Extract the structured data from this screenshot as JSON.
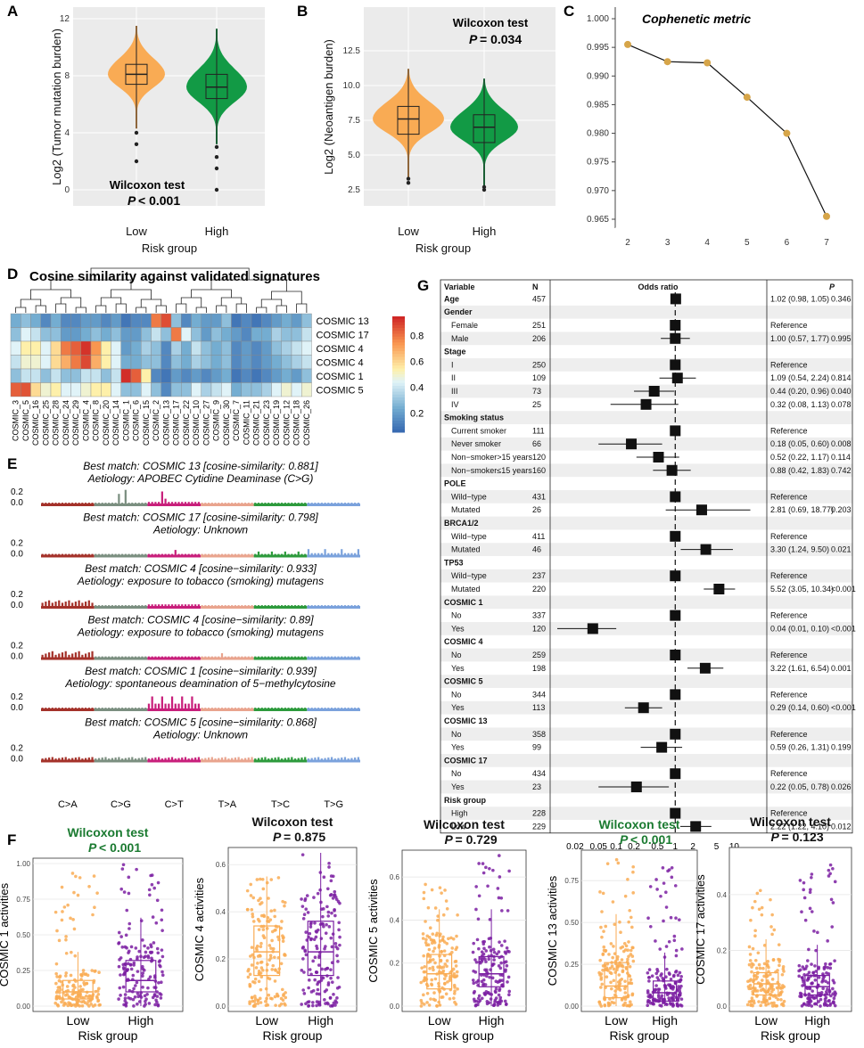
{
  "panels": {
    "A": "A",
    "B": "B",
    "C": "C",
    "D": "D",
    "E": "E",
    "F": "F",
    "G": "G"
  },
  "colors": {
    "low": "#f9ab54",
    "high": "#129a45",
    "purple": "#7b1fa2",
    "dot": "#d6a549",
    "grey_panel": "#ebebeb",
    "green_text": "#1a7a30"
  },
  "panelA": {
    "ylabel": "Log2 (Tumor mutation burden)",
    "xlabel": "Risk group",
    "categories": [
      "Low",
      "High"
    ],
    "yticks": [
      "0",
      "4",
      "8",
      "12"
    ],
    "stat_test": "Wilcoxon test",
    "stat_p_label": "P",
    "stat_p_value": "< 0.001"
  },
  "panelB": {
    "ylabel": "Log2 (Neoantigen burden)",
    "xlabel": "Risk group",
    "categories": [
      "Low",
      "High"
    ],
    "yticks": [
      "2.5",
      "5.0",
      "7.5",
      "10.0",
      "12.5"
    ],
    "stat_test": "Wilcoxon test",
    "stat_p_label": "P",
    "stat_p_value": "= 0.034"
  },
  "chart_data": [
    {
      "type": "line",
      "id": "C",
      "title": "Cophenetic metric",
      "x": [
        2,
        3,
        4,
        5,
        6,
        7
      ],
      "y": [
        0.9955,
        0.9925,
        0.9923,
        0.9863,
        0.98,
        0.9655
      ],
      "xlim": [
        2,
        7
      ],
      "ylim": [
        0.965,
        1.0
      ],
      "xticks": [
        "2",
        "3",
        "4",
        "5",
        "6",
        "7"
      ],
      "yticks": [
        "0.965",
        "0.970",
        "0.975",
        "0.980",
        "0.985",
        "0.990",
        "0.995",
        "1.000"
      ]
    },
    {
      "type": "heatmap",
      "id": "D",
      "title": "Cosine similarity against validated signatures",
      "rows": [
        "COSMIC 13",
        "COSMIC 17",
        "COSMIC 4",
        "COSMIC 4",
        "COSMIC 1",
        "COSMIC 5"
      ],
      "columns": [
        "COSMIC_3",
        "COSMIC_5",
        "COSMIC_16",
        "COSMIC_25",
        "COSMIC_28",
        "COSMIC_24",
        "COSMIC_29",
        "COSMIC_4",
        "COSMIC_8",
        "COSMIC_20",
        "COSMIC_14",
        "COSMIC_1",
        "COSMIC_6",
        "COSMIC_15",
        "COSMIC_2",
        "COSMIC_13",
        "COSMIC_17",
        "COSMIC_22",
        "COSMIC_10",
        "COSMIC_27",
        "COSMIC_9",
        "COSMIC_30",
        "COSMIC_7",
        "COSMIC_11",
        "COSMIC_21",
        "COSMIC_23",
        "COSMIC_19",
        "COSMIC_12",
        "COSMIC_18",
        "COSMIC_26"
      ],
      "values": [
        [
          0.25,
          0.3,
          0.25,
          0.15,
          0.25,
          0.15,
          0.15,
          0.2,
          0.2,
          0.15,
          0.2,
          0.1,
          0.15,
          0.15,
          0.8,
          0.88,
          0.3,
          0.15,
          0.25,
          0.2,
          0.2,
          0.3,
          0.1,
          0.15,
          0.1,
          0.15,
          0.2,
          0.25,
          0.2,
          0.3
        ],
        [
          0.3,
          0.45,
          0.4,
          0.3,
          0.3,
          0.2,
          0.2,
          0.25,
          0.3,
          0.25,
          0.3,
          0.2,
          0.2,
          0.3,
          0.4,
          0.3,
          0.8,
          0.45,
          0.3,
          0.2,
          0.3,
          0.25,
          0.2,
          0.15,
          0.25,
          0.25,
          0.35,
          0.3,
          0.3,
          0.4
        ],
        [
          0.45,
          0.55,
          0.55,
          0.45,
          0.6,
          0.8,
          0.85,
          0.93,
          0.75,
          0.55,
          0.45,
          0.2,
          0.25,
          0.35,
          0.3,
          0.15,
          0.35,
          0.25,
          0.4,
          0.3,
          0.25,
          0.3,
          0.15,
          0.2,
          0.15,
          0.2,
          0.3,
          0.35,
          0.4,
          0.45
        ],
        [
          0.4,
          0.5,
          0.5,
          0.45,
          0.6,
          0.7,
          0.8,
          0.89,
          0.7,
          0.55,
          0.45,
          0.25,
          0.25,
          0.3,
          0.3,
          0.15,
          0.3,
          0.25,
          0.35,
          0.3,
          0.25,
          0.3,
          0.15,
          0.2,
          0.15,
          0.2,
          0.25,
          0.3,
          0.35,
          0.4
        ],
        [
          0.3,
          0.4,
          0.4,
          0.3,
          0.4,
          0.3,
          0.3,
          0.4,
          0.4,
          0.3,
          0.4,
          0.94,
          0.85,
          0.55,
          0.15,
          0.1,
          0.2,
          0.15,
          0.2,
          0.15,
          0.2,
          0.25,
          0.1,
          0.15,
          0.1,
          0.15,
          0.2,
          0.25,
          0.2,
          0.3
        ],
        [
          0.85,
          0.87,
          0.6,
          0.5,
          0.55,
          0.45,
          0.45,
          0.5,
          0.55,
          0.55,
          0.45,
          0.3,
          0.3,
          0.45,
          0.3,
          0.15,
          0.3,
          0.3,
          0.45,
          0.35,
          0.4,
          0.45,
          0.25,
          0.3,
          0.3,
          0.35,
          0.45,
          0.5,
          0.45,
          0.5
        ]
      ],
      "colorbar_ticks": [
        "0.8",
        "0.6",
        "0.4",
        "0.2"
      ],
      "colorbar_range": [
        0.05,
        0.95
      ]
    },
    {
      "type": "bar",
      "id": "E",
      "categories": [
        "C>A",
        "C>G",
        "C>T",
        "T>A",
        "T>C",
        "T>G"
      ],
      "yticks": [
        "0.0",
        "0.2"
      ],
      "category_colors": [
        "#a4322a",
        "#7b8f80",
        "#c81f7b",
        "#e9a48e",
        "#2d9a3c",
        "#7ba2dc"
      ],
      "signatures": [
        {
          "match": "Best match: COSMIC 13 [cosine-similarity: 0.881]",
          "aetiology": "Aetiology: APOBEC Cytidine Deaminase (C>G)",
          "profile": "s13"
        },
        {
          "match": "Best match: COSMIC 17 [cosine-similarity: 0.798]",
          "aetiology": "Aetiology: Unknown",
          "profile": "s17"
        },
        {
          "match": "Best match: COSMIC 4 [cosine−similarity: 0.933]",
          "aetiology": "Aetiology: exposure to tobacco (smoking) mutagens",
          "profile": "s4a"
        },
        {
          "match": "Best match: COSMIC 4 [cosine−similarity: 0.89]",
          "aetiology": "Aetiology: exposure to tobacco (smoking) mutagens",
          "profile": "s4b"
        },
        {
          "match": "Best match: COSMIC 1 [cosine−similarity: 0.939]",
          "aetiology": "Aetiology: spontaneous deamination of 5−methylcytosine",
          "profile": "s1"
        },
        {
          "match": "Best match: COSMIC 5 [cosine−similarity: 0.868]",
          "aetiology": "Aetiology: Unknown",
          "profile": "s5"
        }
      ]
    },
    {
      "type": "scatter",
      "id": "G",
      "title": "Odds ratio",
      "header": {
        "variable": "Variable",
        "n": "N",
        "p": "P"
      },
      "xticks": [
        "0.02",
        "0.05",
        "0.1",
        "0.2",
        "0.5",
        "1",
        "2",
        "5",
        "10"
      ],
      "xtick_values": [
        0.02,
        0.05,
        0.1,
        0.2,
        0.5,
        1,
        2,
        5,
        10
      ],
      "xlim": [
        0.01,
        30
      ],
      "rows": [
        {
          "label": "Age",
          "bold": true,
          "n": "457",
          "or": 1.02,
          "lo": 0.98,
          "hi": 1.05,
          "text": "1.02 (0.98, 1.05)",
          "p": "0.346"
        },
        {
          "label": "Gender",
          "bold": true
        },
        {
          "label": "Female",
          "n": "251",
          "or": 1,
          "text": "Reference"
        },
        {
          "label": "Male",
          "n": "206",
          "or": 1.0,
          "lo": 0.57,
          "hi": 1.77,
          "text": "1.00 (0.57, 1.77)",
          "p": "0.995"
        },
        {
          "label": "Stage",
          "bold": true
        },
        {
          "label": "I",
          "n": "250",
          "or": 1,
          "text": "Reference"
        },
        {
          "label": "II",
          "n": "109",
          "or": 1.09,
          "lo": 0.54,
          "hi": 2.24,
          "text": "1.09 (0.54, 2.24)",
          "p": "0.814"
        },
        {
          "label": "III",
          "n": "73",
          "or": 0.44,
          "lo": 0.2,
          "hi": 0.96,
          "text": "0.44 (0.20, 0.96)",
          "p": "0.040"
        },
        {
          "label": "IV",
          "n": "25",
          "or": 0.32,
          "lo": 0.08,
          "hi": 1.13,
          "text": "0.32 (0.08, 1.13)",
          "p": "0.078"
        },
        {
          "label": "Smoking status",
          "bold": true
        },
        {
          "label": "Current smoker",
          "n": "111",
          "or": 1,
          "text": "Reference"
        },
        {
          "label": "Never smoker",
          "n": "66",
          "or": 0.18,
          "lo": 0.05,
          "hi": 0.6,
          "text": "0.18 (0.05, 0.60)",
          "p": "0.008"
        },
        {
          "label": "Non−smoker>15 years",
          "n": "120",
          "or": 0.52,
          "lo": 0.22,
          "hi": 1.17,
          "text": "0.52 (0.22, 1.17)",
          "p": "0.114"
        },
        {
          "label": "Non−smoker≤15 years",
          "n": "160",
          "or": 0.88,
          "lo": 0.42,
          "hi": 1.83,
          "text": "0.88 (0.42, 1.83)",
          "p": "0.742"
        },
        {
          "label": "POLE",
          "bold": true
        },
        {
          "label": "Wild−type",
          "n": "431",
          "or": 1,
          "text": "Reference"
        },
        {
          "label": "Mutated",
          "n": "26",
          "or": 2.81,
          "lo": 0.69,
          "hi": 18.77,
          "text": "2.81 (0.69, 18.77)",
          "p": "0.203"
        },
        {
          "label": "BRCA1/2",
          "bold": true
        },
        {
          "label": "Wild−type",
          "n": "411",
          "or": 1,
          "text": "Reference"
        },
        {
          "label": "Mutated",
          "n": "46",
          "or": 3.3,
          "lo": 1.24,
          "hi": 9.5,
          "text": "3.30 (1.24, 9.50)",
          "p": "0.021"
        },
        {
          "label": "TP53",
          "bold": true
        },
        {
          "label": "Wild−type",
          "n": "237",
          "or": 1,
          "text": "Reference"
        },
        {
          "label": "Mutated",
          "n": "220",
          "or": 5.52,
          "lo": 3.05,
          "hi": 10.34,
          "text": "5.52 (3.05, 10.34)",
          "p": "<0.001"
        },
        {
          "label": "COSMIC 1",
          "bold": true
        },
        {
          "label": "No",
          "n": "337",
          "or": 1,
          "text": "Reference"
        },
        {
          "label": "Yes",
          "n": "120",
          "or": 0.04,
          "lo": 0.01,
          "hi": 0.1,
          "text": "0.04 (0.01, 0.10)",
          "p": "<0.001"
        },
        {
          "label": "COSMIC 4",
          "bold": true
        },
        {
          "label": "No",
          "n": "259",
          "or": 1,
          "text": "Reference"
        },
        {
          "label": "Yes",
          "n": "198",
          "or": 3.22,
          "lo": 1.61,
          "hi": 6.54,
          "text": "3.22 (1.61, 6.54)",
          "p": "0.001"
        },
        {
          "label": "COSMIC 5",
          "bold": true
        },
        {
          "label": "No",
          "n": "344",
          "or": 1,
          "text": "Reference"
        },
        {
          "label": "Yes",
          "n": "113",
          "or": 0.29,
          "lo": 0.14,
          "hi": 0.6,
          "text": "0.29 (0.14, 0.60)",
          "p": "<0.001"
        },
        {
          "label": "COSMIC 13",
          "bold": true
        },
        {
          "label": "No",
          "n": "358",
          "or": 1,
          "text": "Reference"
        },
        {
          "label": "Yes",
          "n": "99",
          "or": 0.59,
          "lo": 0.26,
          "hi": 1.31,
          "text": "0.59 (0.26, 1.31)",
          "p": "0.199"
        },
        {
          "label": "COSMIC 17",
          "bold": true
        },
        {
          "label": "No",
          "n": "434",
          "or": 1,
          "text": "Reference"
        },
        {
          "label": "Yes",
          "n": "23",
          "or": 0.22,
          "lo": 0.05,
          "hi": 0.78,
          "text": "0.22 (0.05, 0.78)",
          "p": "0.026"
        },
        {
          "label": "Risk group",
          "bold": true
        },
        {
          "label": "High",
          "n": "228",
          "or": 1,
          "text": "Reference"
        },
        {
          "label": "Low",
          "n": "229",
          "or": 2.22,
          "lo": 1.22,
          "hi": 4.1,
          "text": "2.22 (1.22, 4.10)",
          "p": "0.012"
        }
      ]
    },
    {
      "type": "scatter",
      "id": "F",
      "xlabel": "Risk group",
      "categories": [
        "Low",
        "High"
      ],
      "plots": [
        {
          "ylabel": "COSMIC 1 activities",
          "test": "Wilcoxon test",
          "p_label": "P",
          "p_value": "< 0.001",
          "green": true,
          "ylim": [
            0,
            1.0
          ],
          "yticks": [
            0,
            0.25,
            0.5,
            0.75,
            1.0
          ],
          "ytick_labels": [
            "0.00",
            "0.25",
            "0.50",
            "0.75",
            "1.00"
          ],
          "low": {
            "q1": 0.05,
            "med": 0.1,
            "q3": 0.18,
            "wlo": 0,
            "whi": 0.38,
            "max": 0.98
          },
          "high": {
            "q1": 0.1,
            "med": 0.18,
            "q3": 0.32,
            "wlo": 0,
            "whi": 0.62,
            "max": 1.0
          }
        },
        {
          "ylabel": "COSMIC 4 activities",
          "test": "Wilcoxon test",
          "p_label": "P",
          "p_value": "= 0.875",
          "green": false,
          "ylim": [
            0,
            0.65
          ],
          "yticks": [
            0,
            0.2,
            0.4,
            0.6
          ],
          "ytick_labels": [
            "0.0",
            "0.2",
            "0.4",
            "0.6"
          ],
          "low": {
            "q1": 0.13,
            "med": 0.23,
            "q3": 0.34,
            "wlo": 0,
            "whi": 0.55,
            "max": 0.55
          },
          "high": {
            "q1": 0.13,
            "med": 0.23,
            "q3": 0.36,
            "wlo": 0,
            "whi": 0.65,
            "max": 0.65
          }
        },
        {
          "ylabel": "COSMIC 5 activities",
          "test": "Wilcoxon test",
          "p_label": "P",
          "p_value": "= 0.729",
          "green": false,
          "ylim": [
            0,
            0.7
          ],
          "yticks": [
            0,
            0.2,
            0.4,
            0.6
          ],
          "ytick_labels": [
            "0.0",
            "0.2",
            "0.4",
            "0.6"
          ],
          "low": {
            "q1": 0.08,
            "med": 0.15,
            "q3": 0.24,
            "wlo": 0,
            "whi": 0.45,
            "max": 0.59
          },
          "high": {
            "q1": 0.09,
            "med": 0.15,
            "q3": 0.23,
            "wlo": 0,
            "whi": 0.45,
            "max": 0.7
          }
        },
        {
          "ylabel": "COSMIC 13 activities",
          "test": "Wilcoxon test",
          "p_label": "P",
          "p_value": "< 0.001",
          "green": true,
          "ylim": [
            0,
            0.9
          ],
          "yticks": [
            0,
            0.25,
            0.5,
            0.75
          ],
          "ytick_labels": [
            "0.00",
            "0.25",
            "0.50",
            "0.75"
          ],
          "low": {
            "q1": 0.05,
            "med": 0.12,
            "q3": 0.26,
            "wlo": 0,
            "whi": 0.55,
            "max": 0.88
          },
          "high": {
            "q1": 0.03,
            "med": 0.08,
            "q3": 0.15,
            "wlo": 0,
            "whi": 0.32,
            "max": 0.85
          }
        },
        {
          "ylabel": "COSMIC 17 activities",
          "test": "Wilcoxon test",
          "p_label": "P",
          "p_value": "= 0.123",
          "green": false,
          "ylim": [
            0,
            0.55
          ],
          "yticks": [
            0,
            0.2,
            0.4
          ],
          "ytick_labels": [
            "0.0",
            "0.2",
            "0.4"
          ],
          "low": {
            "q1": 0.04,
            "med": 0.08,
            "q3": 0.12,
            "wlo": 0,
            "whi": 0.24,
            "max": 0.42
          },
          "high": {
            "q1": 0.04,
            "med": 0.07,
            "q3": 0.11,
            "wlo": 0,
            "whi": 0.22,
            "max": 0.53
          }
        }
      ]
    }
  ]
}
